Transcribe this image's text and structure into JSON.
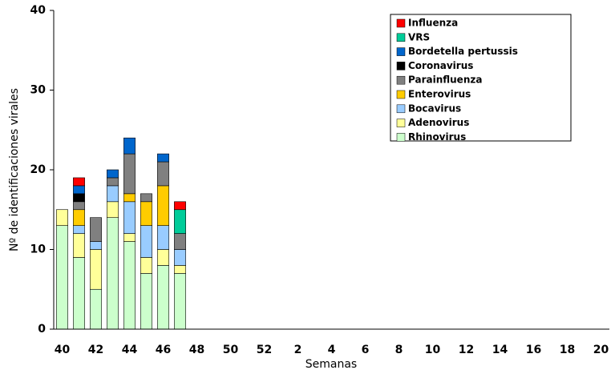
{
  "chart_data": {
    "type": "stacked_bar",
    "y_label": "Nº de identificaciones virales",
    "x_label": "Semanas",
    "categories": [
      40,
      null,
      42,
      null,
      44,
      null,
      46,
      null,
      48,
      null,
      50,
      null,
      52,
      null,
      2,
      null,
      4,
      null,
      6,
      null,
      8,
      null,
      10,
      null,
      12,
      null,
      14,
      null,
      16,
      null,
      18,
      null,
      20
    ],
    "series": [
      {
        "name": "Rhinovirus",
        "color": "#ccffcc",
        "values": [
          13,
          9,
          5,
          14,
          11,
          7,
          8,
          7,
          null,
          null,
          null,
          null,
          null,
          null,
          null,
          null,
          null,
          null,
          null,
          null,
          null,
          null,
          null,
          null,
          null,
          null,
          null,
          null,
          null,
          null,
          null,
          null,
          null
        ]
      },
      {
        "name": "Adenovirus",
        "color": "#ffff99",
        "values": [
          2,
          3,
          5,
          2,
          1,
          2,
          2,
          1,
          null,
          null,
          null,
          null,
          null,
          null,
          null,
          null,
          null,
          null,
          null,
          null,
          null,
          null,
          null,
          null,
          null,
          null,
          null,
          null,
          null,
          null,
          null,
          null,
          null
        ]
      },
      {
        "name": "Bocavirus",
        "color": "#99ccff",
        "values": [
          0,
          1,
          1,
          2,
          4,
          4,
          3,
          2,
          null,
          null,
          null,
          null,
          null,
          null,
          null,
          null,
          null,
          null,
          null,
          null,
          null,
          null,
          null,
          null,
          null,
          null,
          null,
          null,
          null,
          null,
          null,
          null,
          null
        ]
      },
      {
        "name": "Enterovirus",
        "color": "#ffcc00",
        "values": [
          0,
          2,
          0,
          0,
          1,
          3,
          5,
          0,
          null,
          null,
          null,
          null,
          null,
          null,
          null,
          null,
          null,
          null,
          null,
          null,
          null,
          null,
          null,
          null,
          null,
          null,
          null,
          null,
          null,
          null,
          null,
          null,
          null
        ]
      },
      {
        "name": "Parainfluenza",
        "color": "#808080",
        "values": [
          0,
          1,
          3,
          1,
          5,
          1,
          3,
          2,
          null,
          null,
          null,
          null,
          null,
          null,
          null,
          null,
          null,
          null,
          null,
          null,
          null,
          null,
          null,
          null,
          null,
          null,
          null,
          null,
          null,
          null,
          null,
          null,
          null
        ]
      },
      {
        "name": "Coronavirus",
        "color": "#000000",
        "values": [
          0,
          1,
          0,
          0,
          0,
          0,
          0,
          0,
          null,
          null,
          null,
          null,
          null,
          null,
          null,
          null,
          null,
          null,
          null,
          null,
          null,
          null,
          null,
          null,
          null,
          null,
          null,
          null,
          null,
          null,
          null,
          null,
          null
        ]
      },
      {
        "name": "Bordetella pertussis",
        "color": "#0066cc",
        "values": [
          0,
          1,
          0,
          1,
          2,
          0,
          1,
          0,
          null,
          null,
          null,
          null,
          null,
          null,
          null,
          null,
          null,
          null,
          null,
          null,
          null,
          null,
          null,
          null,
          null,
          null,
          null,
          null,
          null,
          null,
          null,
          null,
          null
        ]
      },
      {
        "name": "VRS",
        "color": "#00cc99",
        "values": [
          0,
          0,
          0,
          0,
          0,
          0,
          0,
          3,
          null,
          null,
          null,
          null,
          null,
          null,
          null,
          null,
          null,
          null,
          null,
          null,
          null,
          null,
          null,
          null,
          null,
          null,
          null,
          null,
          null,
          null,
          null,
          null,
          null
        ]
      },
      {
        "name": "Influenza",
        "color": "#ff0000",
        "values": [
          0,
          1,
          0,
          0,
          0,
          0,
          0,
          1,
          null,
          null,
          null,
          null,
          null,
          null,
          null,
          null,
          null,
          null,
          null,
          null,
          null,
          null,
          null,
          null,
          null,
          null,
          null,
          null,
          null,
          null,
          null,
          null,
          null
        ]
      }
    ],
    "ylim": [
      0,
      40
    ],
    "yticks": [
      0,
      10,
      20,
      30,
      40
    ],
    "grid": false,
    "legend": "upper right"
  }
}
